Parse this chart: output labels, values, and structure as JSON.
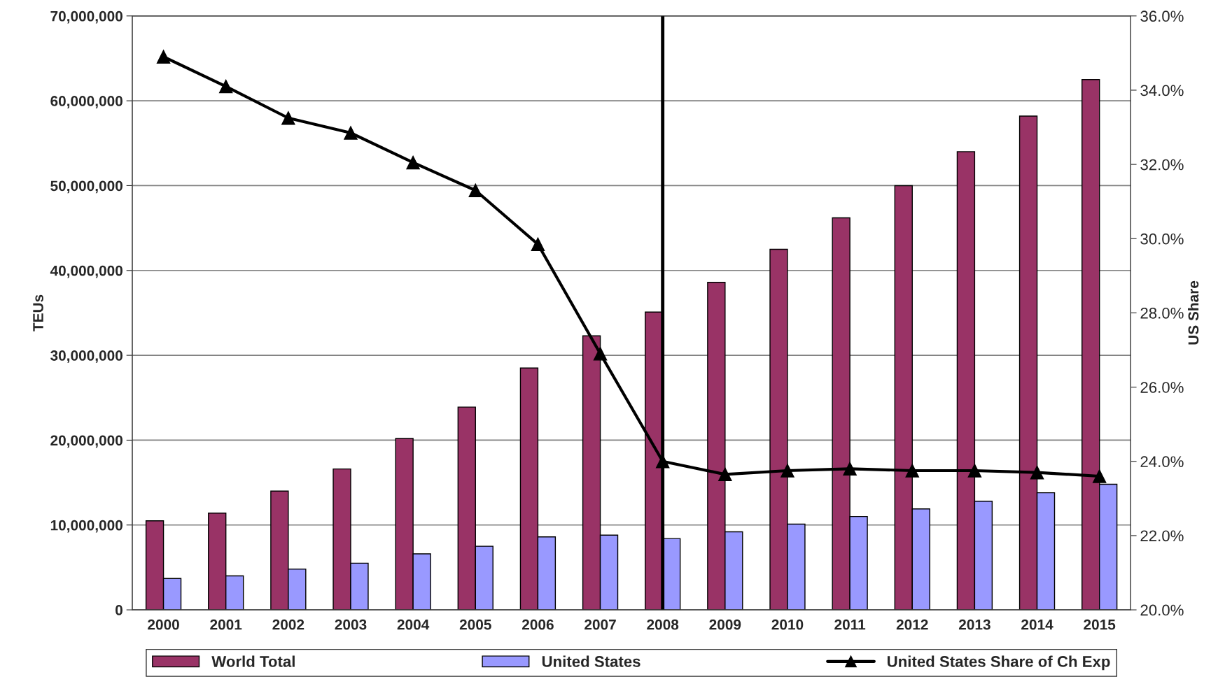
{
  "chart_data": {
    "type": "bar",
    "ylabel": "TEUs",
    "y2label": "US Share",
    "categories": [
      "2000",
      "2001",
      "2002",
      "2003",
      "2004",
      "2005",
      "2006",
      "2007",
      "2008",
      "2009",
      "2010",
      "2011",
      "2012",
      "2013",
      "2014",
      "2015"
    ],
    "series": [
      {
        "name": "World Total",
        "color": "#993366",
        "values": [
          10500000.0,
          11400000.0,
          14000000.0,
          16600000.0,
          20200000.0,
          23900000.0,
          28500000.0,
          32300000.0,
          35100000.0,
          38600000.0,
          42500000.0,
          46200000.0,
          50000000.0,
          54000000.0,
          58200000.0,
          62500000.0
        ]
      },
      {
        "name": "United States",
        "color": "#9999ff",
        "values": [
          3700000.0,
          4000000.0,
          4800000.0,
          5500000.0,
          6600000.0,
          7500000.0,
          8600000.0,
          8800000.0,
          8400000.0,
          9200000.0,
          10100000.0,
          11000000.0,
          11900000.0,
          12800000.0,
          13800000.0,
          14800000.0
        ]
      },
      {
        "name": "United States Share of Ch Exp",
        "type": "line",
        "axis": "y2",
        "color": "#000000",
        "marker": "triangle",
        "values": [
          34.9,
          34.1,
          33.25,
          32.85,
          32.05,
          31.3,
          29.85,
          26.9,
          24.0,
          23.65,
          23.75,
          23.8,
          23.75,
          23.75,
          23.7,
          23.6
        ]
      }
    ],
    "ylim": [
      0,
      70000000
    ],
    "yticks": [
      {
        "value": 0,
        "label": "0"
      },
      {
        "value": 10000000,
        "label": "10,000,000"
      },
      {
        "value": 20000000,
        "label": "20,000,000"
      },
      {
        "value": 30000000,
        "label": "30,000,000"
      },
      {
        "value": 40000000,
        "label": "40,000,000"
      },
      {
        "value": 50000000,
        "label": "50,000,000"
      },
      {
        "value": 60000000,
        "label": "60,000,000"
      },
      {
        "value": 70000000,
        "label": "70,000,000"
      }
    ],
    "y2lim": [
      20,
      36
    ],
    "y2ticks": [
      {
        "value": 20,
        "label": "20.0%"
      },
      {
        "value": 22,
        "label": "22.0%"
      },
      {
        "value": 24,
        "label": "24.0%"
      },
      {
        "value": 26,
        "label": "26.0%"
      },
      {
        "value": 28,
        "label": "28.0%"
      },
      {
        "value": 30,
        "label": "30.0%"
      },
      {
        "value": 32,
        "label": "32.0%"
      },
      {
        "value": 34,
        "label": "34.0%"
      },
      {
        "value": 36,
        "label": "36.0%"
      }
    ],
    "ref_lines": [
      {
        "axis": "x",
        "value": "2008",
        "color": "#000000"
      }
    ],
    "grid": "y",
    "legend": "bottom"
  }
}
